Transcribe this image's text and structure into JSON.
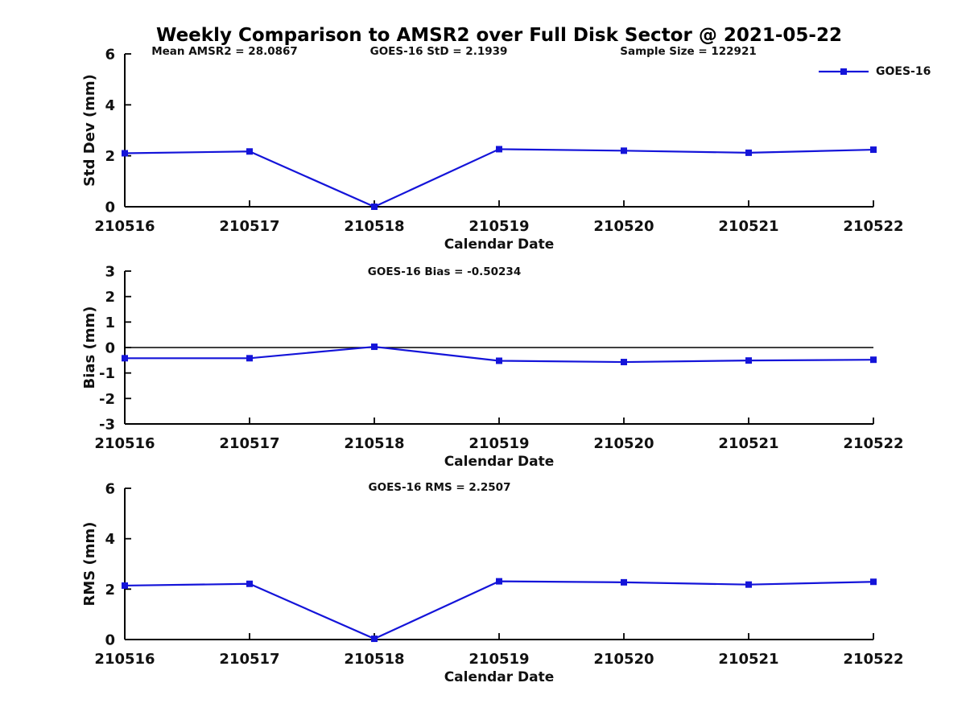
{
  "title": "Weekly Comparison to AMSR2 over Full Disk Sector @ 2021-05-22",
  "annotations": {
    "mean_amsr2": "Mean AMSR2 = 28.0867",
    "goes16_std": "GOES-16 StD = 2.1939",
    "sample_size": "Sample Size = 122921"
  },
  "legend": {
    "label": "GOES-16",
    "marker": "filled-square",
    "position": "top-right"
  },
  "colors": {
    "series_blue": "#1414d9",
    "axis_black": "#000000",
    "text_dark": "#111111",
    "zero_line": "#000000",
    "background": "#ffffff"
  },
  "chart_data": [
    {
      "type": "line",
      "title": "",
      "xlabel": "Calendar Date",
      "ylabel": "Std Dev (mm)",
      "categories": [
        "210516",
        "210517",
        "210518",
        "210519",
        "210520",
        "210521",
        "210522"
      ],
      "yticks": [
        0,
        2,
        4,
        6
      ],
      "ylim": [
        0,
        6
      ],
      "grid": false,
      "zero_line": false,
      "series": [
        {
          "name": "GOES-16",
          "values": [
            2.1,
            2.17,
            0.0,
            2.26,
            2.2,
            2.12,
            2.24
          ]
        }
      ]
    },
    {
      "type": "line",
      "title": "GOES-16 Bias  = -0.50234",
      "xlabel": "Calendar Date",
      "ylabel": "Bias (mm)",
      "categories": [
        "210516",
        "210517",
        "210518",
        "210519",
        "210520",
        "210521",
        "210522"
      ],
      "yticks": [
        -3,
        -2,
        -1,
        0,
        1,
        2,
        3
      ],
      "ylim": [
        -3,
        3
      ],
      "grid": false,
      "zero_line": true,
      "series": [
        {
          "name": "GOES-16",
          "values": [
            -0.42,
            -0.42,
            0.03,
            -0.52,
            -0.57,
            -0.51,
            -0.48
          ]
        }
      ]
    },
    {
      "type": "line",
      "title": "GOES-16 RMS = 2.2507",
      "xlabel": "Calendar Date",
      "ylabel": "RMS (mm)",
      "categories": [
        "210516",
        "210517",
        "210518",
        "210519",
        "210520",
        "210521",
        "210522"
      ],
      "yticks": [
        0,
        2,
        4,
        6
      ],
      "ylim": [
        0,
        6
      ],
      "grid": false,
      "zero_line": false,
      "series": [
        {
          "name": "GOES-16",
          "values": [
            2.14,
            2.21,
            0.03,
            2.31,
            2.27,
            2.18,
            2.29
          ]
        }
      ]
    }
  ]
}
